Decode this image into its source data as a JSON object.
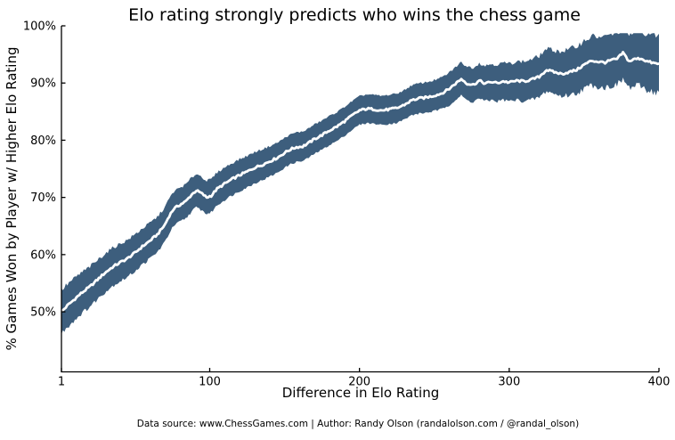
{
  "chart_data": {
    "type": "area",
    "title": "Elo rating strongly predicts who wins the chess game",
    "xlabel": "Difference in Elo Rating",
    "ylabel": "% Games Won by Player w/ Higher Elo Rating",
    "footer": "Data source: www.ChessGames.com | Author: Randy Olson (randalolson.com / @randal_olson)",
    "xlim": [
      1,
      400
    ],
    "ylim": [
      39.5,
      100
    ],
    "grid": false,
    "legend": "none",
    "x_ticks": [
      {
        "value": 1,
        "label": "1"
      },
      {
        "value": 100,
        "label": "100"
      },
      {
        "value": 200,
        "label": "200"
      },
      {
        "value": 300,
        "label": "300"
      },
      {
        "value": 400,
        "label": "400"
      }
    ],
    "y_ticks": [
      {
        "value": 50,
        "label": "50%"
      },
      {
        "value": 60,
        "label": "60%"
      },
      {
        "value": 70,
        "label": "70%"
      },
      {
        "value": 80,
        "label": "80%"
      },
      {
        "value": 90,
        "label": "90%"
      },
      {
        "value": 100,
        "label": "100%"
      }
    ],
    "series": [
      {
        "name": "win-rate-trend",
        "color": "#ffffff",
        "x": [
          1,
          5,
          8,
          11,
          14,
          20,
          25,
          30,
          35,
          40,
          45,
          50,
          55,
          60,
          65,
          70,
          73,
          76,
          80,
          84,
          88,
          91,
          94,
          98,
          101,
          105,
          110,
          115,
          120,
          125,
          130,
          135,
          140,
          145,
          150,
          154,
          158,
          162,
          166,
          170,
          175,
          180,
          185,
          190,
          195,
          200,
          205,
          210,
          215,
          220,
          225,
          230,
          235,
          240,
          245,
          250,
          255,
          260,
          265,
          268,
          272,
          276,
          280,
          284,
          288,
          292,
          296,
          300,
          305,
          310,
          315,
          320,
          325,
          330,
          335,
          340,
          345,
          350,
          355,
          360,
          364,
          368,
          372,
          376,
          380,
          384,
          388,
          392,
          396,
          400
        ],
        "y": [
          50.0,
          51.1,
          51.8,
          52.5,
          53.2,
          54.4,
          55.6,
          56.8,
          57.8,
          58.6,
          59.3,
          60.3,
          61.4,
          62.4,
          63.5,
          65.2,
          66.8,
          68.0,
          68.7,
          69.3,
          70.5,
          71.2,
          70.8,
          70.0,
          70.3,
          71.5,
          72.4,
          73.2,
          73.9,
          74.5,
          75.2,
          75.7,
          76.3,
          76.9,
          77.8,
          78.4,
          78.8,
          78.9,
          79.5,
          80.2,
          80.9,
          81.7,
          82.4,
          83.3,
          84.3,
          85.2,
          85.5,
          85.4,
          85.2,
          85.4,
          85.6,
          86.2,
          87.0,
          87.3,
          87.5,
          87.8,
          88.2,
          89.0,
          90.1,
          90.7,
          89.9,
          89.7,
          90.4,
          89.9,
          90.2,
          90.0,
          90.3,
          90.1,
          90.4,
          90.3,
          90.6,
          91.1,
          92.3,
          91.9,
          91.6,
          91.9,
          92.3,
          93.2,
          93.9,
          93.7,
          93.6,
          94.0,
          94.2,
          95.3,
          93.8,
          94.2,
          94.3,
          93.8,
          93.5,
          93.3
        ]
      },
      {
        "name": "confidence-band",
        "color": "#3d5e7d",
        "halfwidth_anchors": [
          [
            1,
            3.8
          ],
          [
            25,
            3.4
          ],
          [
            50,
            3.2
          ],
          [
            75,
            3.0
          ],
          [
            100,
            2.9
          ],
          [
            125,
            2.75
          ],
          [
            150,
            2.6
          ],
          [
            175,
            2.55
          ],
          [
            200,
            2.5
          ],
          [
            225,
            2.55
          ],
          [
            250,
            2.7
          ],
          [
            275,
            3.0
          ],
          [
            300,
            3.3
          ],
          [
            325,
            3.7
          ],
          [
            350,
            4.2
          ],
          [
            375,
            4.6
          ],
          [
            400,
            5.1
          ]
        ],
        "upper_cap": 98.7
      }
    ],
    "colors": {
      "band": "#3d5e7d",
      "line": "#ffffff",
      "axis": "#000000",
      "background": "#ffffff"
    }
  }
}
